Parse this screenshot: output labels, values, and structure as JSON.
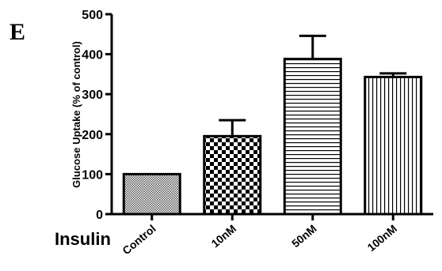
{
  "panel_label": "E",
  "chart_data": {
    "type": "bar",
    "title": "",
    "xlabel": "Insulin",
    "ylabel": "Glucose Uptake (% of control)",
    "ylim": [
      0,
      500
    ],
    "yticks": [
      0,
      100,
      200,
      300,
      400,
      500
    ],
    "categories": [
      "Control",
      "10nM",
      "50nM",
      "100nM"
    ],
    "values": [
      100,
      195,
      388,
      343
    ],
    "error_upper": [
      0,
      40,
      58,
      9
    ],
    "bar_patterns": [
      "crosshatch",
      "checkerboard",
      "horizontal-lines",
      "vertical-lines"
    ],
    "grid": false,
    "legend": "none"
  }
}
